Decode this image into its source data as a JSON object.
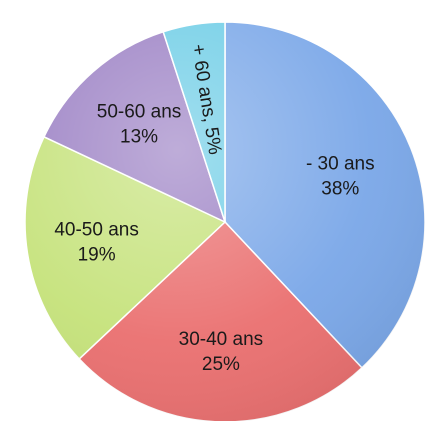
{
  "chart_data": {
    "type": "pie",
    "title": "",
    "slices": [
      {
        "label": "- 30 ans",
        "value": 38,
        "value_label": "38%",
        "color": "#7aa7e8"
      },
      {
        "label": "30-40 ans",
        "value": 25,
        "value_label": "25%",
        "color": "#ea6f6f"
      },
      {
        "label": "40-50 ans",
        "value": 19,
        "value_label": "19%",
        "color": "#c5e27a"
      },
      {
        "label": "50-60 ans",
        "value": 13,
        "value_label": "13%",
        "color": "#9b80c4"
      },
      {
        "label": "+ 60 ans",
        "value": 5,
        "value_label": "5%",
        "color": "#6ecde6"
      }
    ],
    "start": "12 o'clock",
    "direction": "clockwise",
    "legend": "none",
    "data_labels": "inside slices",
    "small_slice_label_format": "label, value"
  }
}
